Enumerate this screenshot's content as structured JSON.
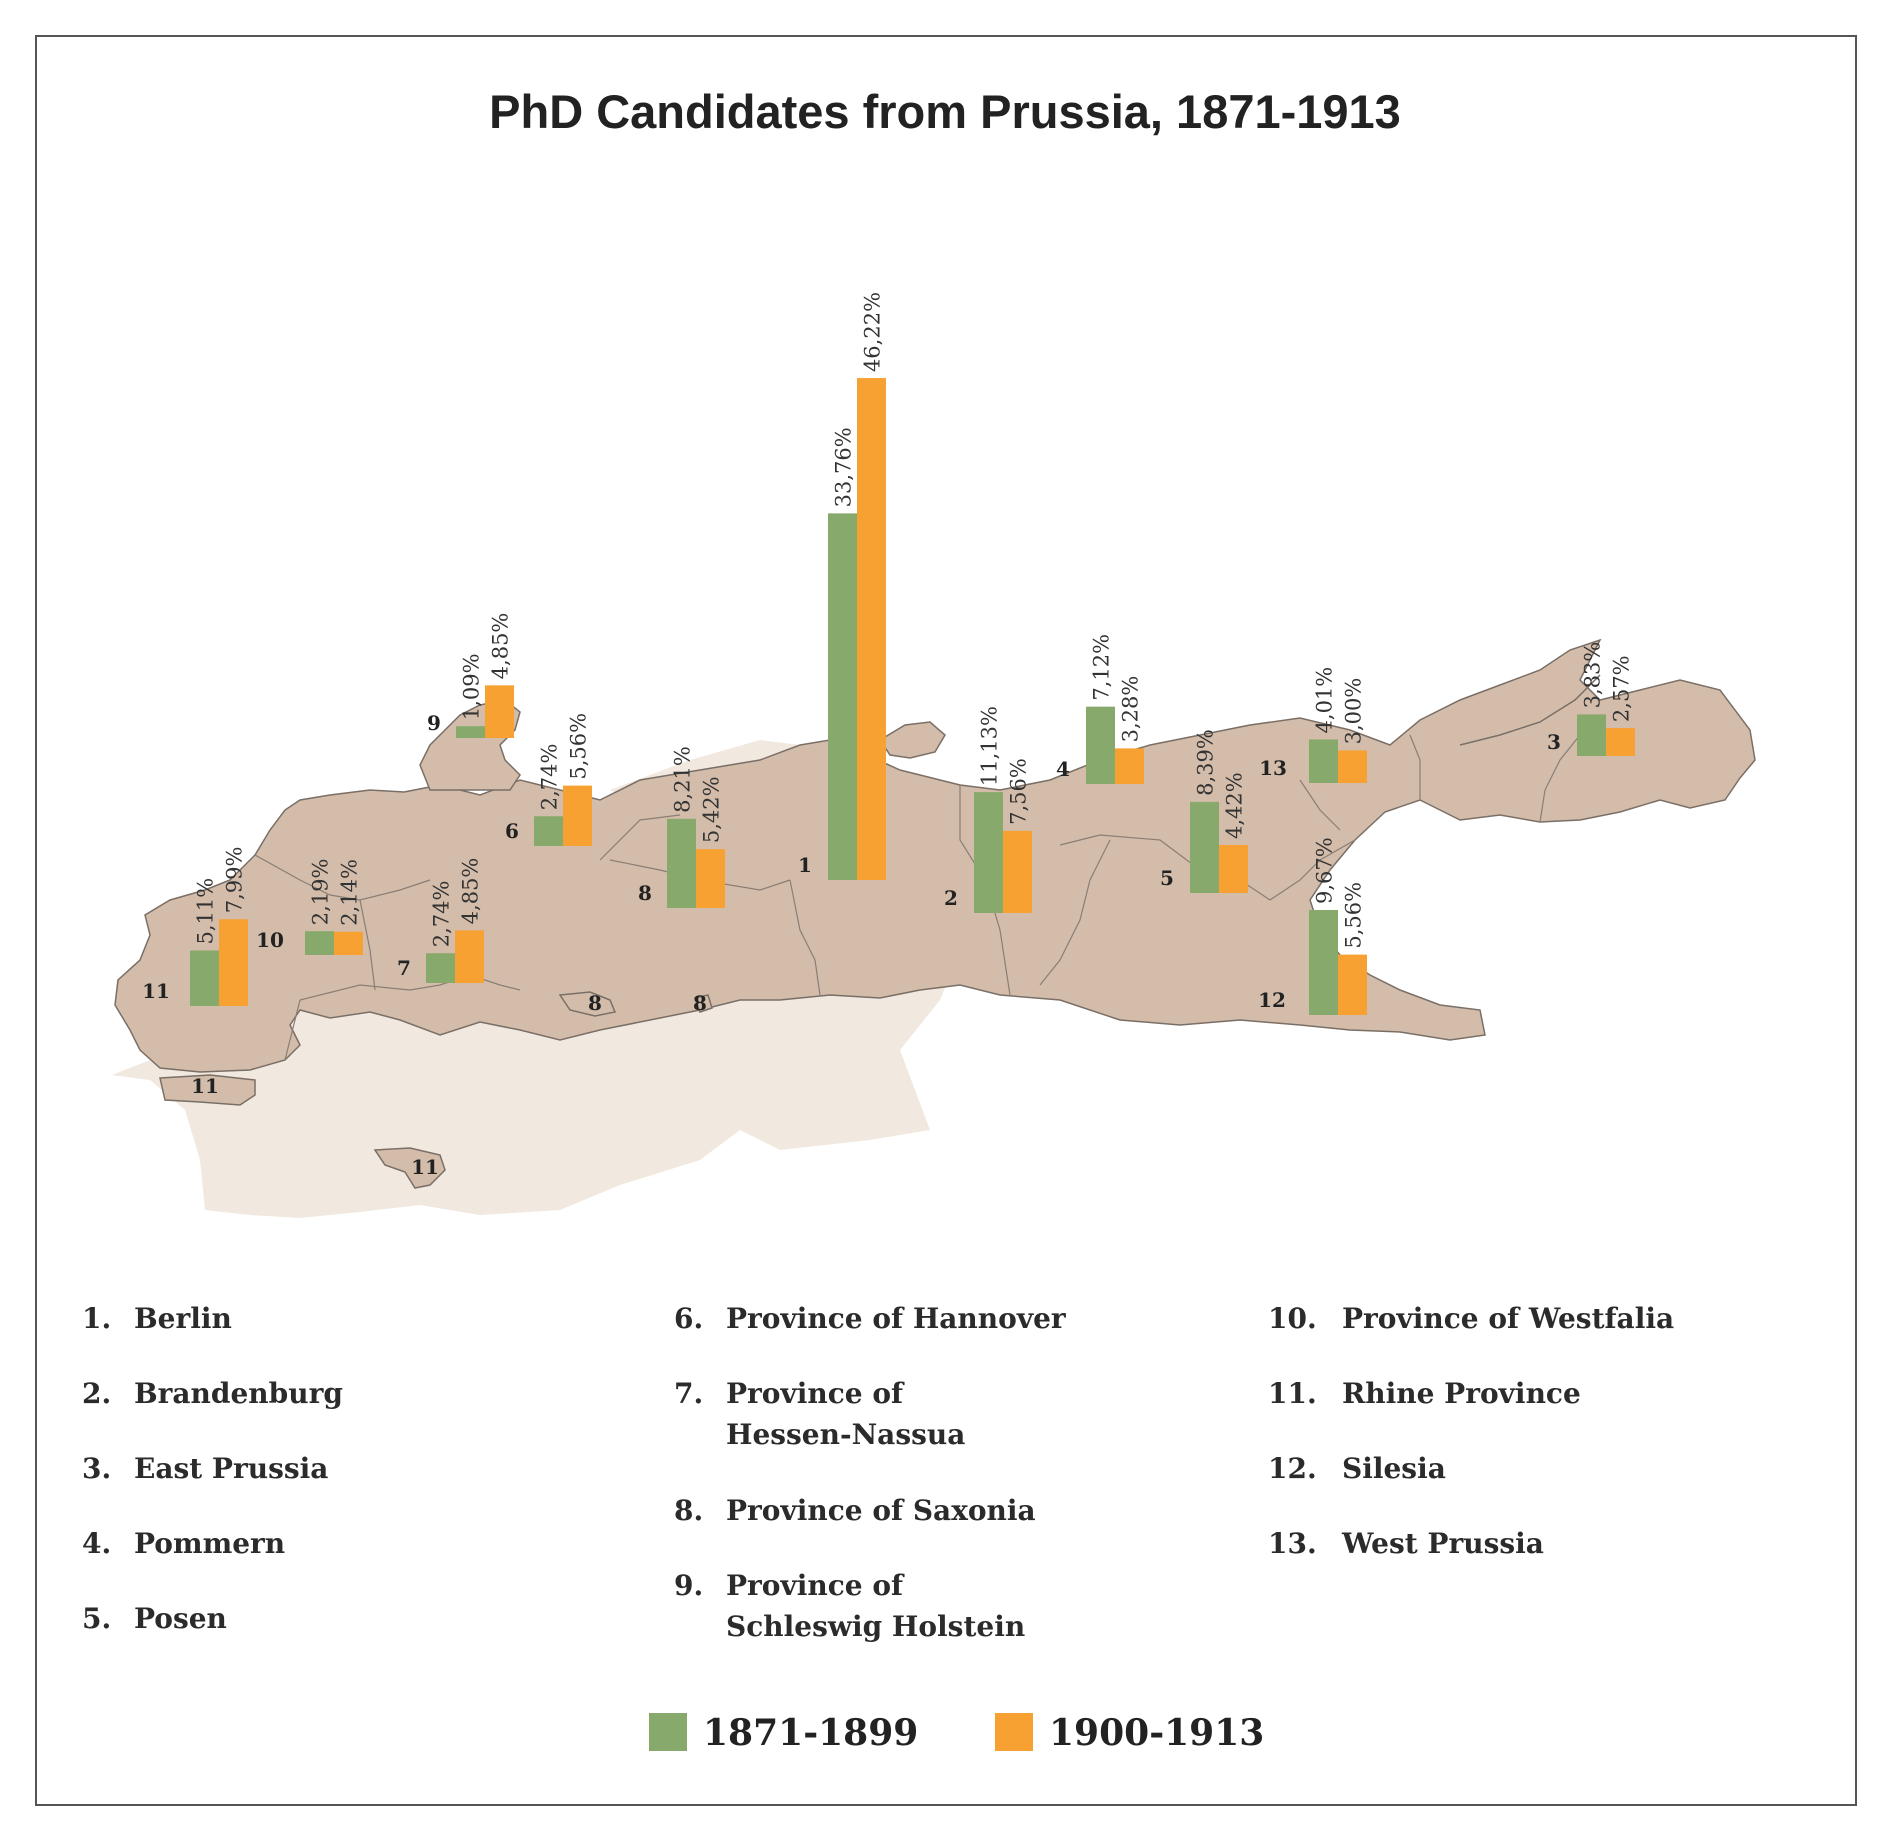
{
  "colors": {
    "series_1": "#87a96b",
    "series_2": "#f7a133",
    "prussia": "#d3bcaa",
    "germany": "#f1e8df",
    "border": "#7a6f66",
    "label": "#333333"
  },
  "chart_data": {
    "type": "bar",
    "title": "PhD Candidates from Prussia, 1871-1913",
    "series": [
      {
        "name": "1871-1899",
        "color": "#87a96b"
      },
      {
        "name": "1900-1913",
        "color": "#f7a133"
      }
    ],
    "regions": [
      {
        "id": "1",
        "name": "Berlin",
        "values": [
          33.76,
          46.22
        ],
        "labels": [
          "33,76%",
          "46,22%"
        ]
      },
      {
        "id": "2",
        "name": "Brandenburg",
        "values": [
          11.13,
          7.56
        ],
        "labels": [
          "11,13%",
          "7,56%"
        ]
      },
      {
        "id": "3",
        "name": "East Prussia",
        "values": [
          3.83,
          2.57
        ],
        "labels": [
          "3,83%",
          "2,57%"
        ]
      },
      {
        "id": "4",
        "name": "Pommern",
        "values": [
          7.12,
          3.28
        ],
        "labels": [
          "7,12%",
          "3,28%"
        ]
      },
      {
        "id": "5",
        "name": "Posen",
        "values": [
          8.39,
          4.42
        ],
        "labels": [
          "8,39%",
          "4,42%"
        ]
      },
      {
        "id": "6",
        "name": "Province of Hannover",
        "values": [
          2.74,
          5.56
        ],
        "labels": [
          "2,74%",
          "5,56%"
        ]
      },
      {
        "id": "7",
        "name": "Province of Hessen-Nassua",
        "values": [
          2.74,
          4.85
        ],
        "labels": [
          "2,74%",
          "4,85%"
        ]
      },
      {
        "id": "8",
        "name": "Province of Saxonia",
        "values": [
          8.21,
          5.42
        ],
        "labels": [
          "8,21%",
          "5,42%"
        ]
      },
      {
        "id": "9",
        "name": "Province of Schleswig Holstein",
        "values": [
          1.09,
          4.85
        ],
        "labels": [
          "1,09%",
          "4,85%"
        ]
      },
      {
        "id": "10",
        "name": "Province of Westfalia",
        "values": [
          2.19,
          2.14
        ],
        "labels": [
          "2,19%",
          "2,14%"
        ]
      },
      {
        "id": "11",
        "name": "Rhine Province",
        "values": [
          5.11,
          7.99
        ],
        "labels": [
          "5,11%",
          "7,99%"
        ]
      },
      {
        "id": "12",
        "name": "Silesia",
        "values": [
          9.67,
          5.56
        ],
        "labels": [
          "9,67%",
          "5,56%"
        ]
      },
      {
        "id": "13",
        "name": "West Prussia",
        "values": [
          4.01,
          3.0
        ],
        "labels": [
          "4,01%",
          "3,00%"
        ]
      }
    ],
    "extra_map_labels": [
      "8",
      "8",
      "11",
      "11"
    ]
  },
  "legend": {
    "columns": [
      [
        {
          "num": "1.",
          "name": "Berlin"
        },
        {
          "num": "2.",
          "name": "Brandenburg"
        },
        {
          "num": "3.",
          "name": "East Prussia"
        },
        {
          "num": "4.",
          "name": "Pommern"
        },
        {
          "num": "5.",
          "name": "Posen"
        }
      ],
      [
        {
          "num": "6.",
          "name": "Province of Hannover"
        },
        {
          "num": "7.",
          "name": "Province of\nHessen-Nassua"
        },
        {
          "num": "8.",
          "name": "Province of Saxonia"
        },
        {
          "num": "9.",
          "name": "Province of\nSchleswig Holstein"
        }
      ],
      [
        {
          "num": "10.",
          "name": "Province of Westfalia"
        },
        {
          "num": "11.",
          "name": "Rhine Province"
        },
        {
          "num": "12.",
          "name": "Silesia"
        },
        {
          "num": "13.",
          "name": "West Prussia"
        }
      ]
    ],
    "period_1": "1871-1899",
    "period_2": "1900-1913"
  }
}
